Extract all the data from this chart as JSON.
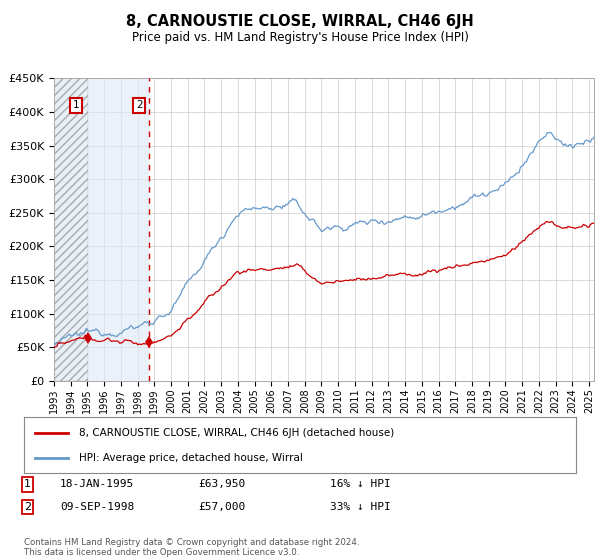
{
  "title": "8, CARNOUSTIE CLOSE, WIRRAL, CH46 6JH",
  "subtitle": "Price paid vs. HM Land Registry's House Price Index (HPI)",
  "ylim": [
    0,
    450000
  ],
  "yticks": [
    0,
    50000,
    100000,
    150000,
    200000,
    250000,
    300000,
    350000,
    400000,
    450000
  ],
  "ytick_labels": [
    "£0",
    "£50K",
    "£100K",
    "£150K",
    "£200K",
    "£250K",
    "£300K",
    "£350K",
    "£400K",
    "£450K"
  ],
  "hpi_color": "#6699cc",
  "price_color": "#cc0000",
  "sale1_date": "18-JAN-1995",
  "sale1_price": 63950,
  "sale1_label": "1",
  "sale1_x": 1995.05,
  "sale2_date": "09-SEP-1998",
  "sale2_price": 57000,
  "sale2_label": "2",
  "sale2_x": 1998.69,
  "legend_line1": "8, CARNOUSTIE CLOSE, WIRRAL, CH46 6JH (detached house)",
  "legend_line2": "HPI: Average price, detached house, Wirral",
  "sale1_info": "18-JAN-1995        £63,950        16% ↓ HPI",
  "sale2_info": "09-SEP-1998        £57,000        33% ↓ HPI",
  "footer": "Contains HM Land Registry data © Crown copyright and database right 2024.\nThis data is licensed under the Open Government Licence v3.0.",
  "hatch_start": 1993.0,
  "hatch_end": 1995.05,
  "plain_end": 1998.69,
  "xlim_start": 1993.0,
  "xlim_end": 2025.3,
  "background_color": "#ffffff",
  "grid_color": "#cccccc"
}
